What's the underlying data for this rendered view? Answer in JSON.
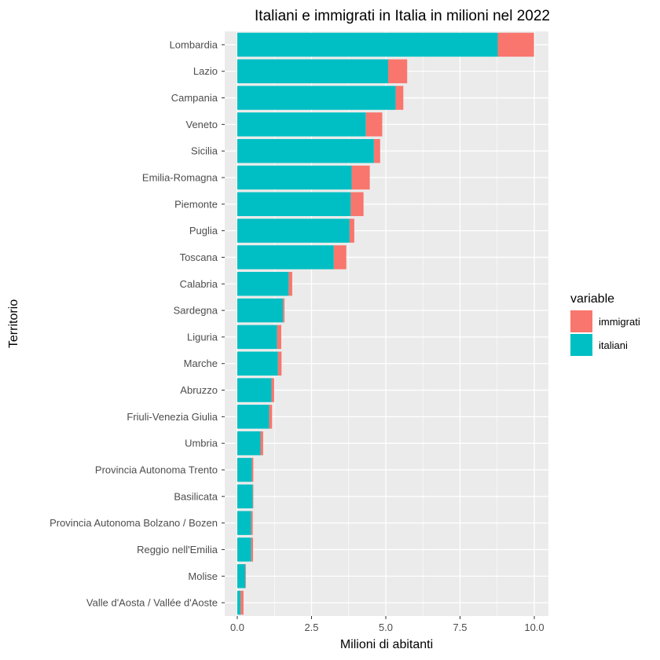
{
  "chart_data": {
    "type": "bar",
    "orientation": "horizontal",
    "stacked": true,
    "title": "Italiani e immigrati in  Italia in milioni nel 2022",
    "xlabel": "Milioni di abitanti",
    "ylabel": "Territorio",
    "xlim": [
      0,
      10.5
    ],
    "x_ticks": [
      "0.0",
      "2.5",
      "5.0",
      "7.5",
      "10.0"
    ],
    "x_tick_values": [
      0,
      2.5,
      5,
      7.5,
      10
    ],
    "grid": true,
    "panel_background": "#ebebeb",
    "legend": {
      "title": "variable",
      "position": "right"
    },
    "categories": [
      "Lombardia",
      "Lazio",
      "Campania",
      "Veneto",
      "Sicilia",
      "Emilia-Romagna",
      "Piemonte",
      "Puglia",
      "Toscana",
      "Calabria",
      "Sardegna",
      "Liguria",
      "Marche",
      "Abruzzo",
      "Friuli-Venezia Giulia",
      "Umbria",
      "Provincia Autonoma Trento",
      "Basilicata",
      "Provincia Autonoma Bolzano / Bozen",
      "Reggio nell'Emilia",
      "Molise",
      "Valle d'Aosta / Vallée d'Aoste"
    ],
    "series": [
      {
        "name": "italiani",
        "color": "#00bfc4",
        "values": [
          8.77,
          5.08,
          5.33,
          4.33,
          4.6,
          3.85,
          3.82,
          3.78,
          3.25,
          1.73,
          1.54,
          1.34,
          1.37,
          1.15,
          1.07,
          0.78,
          0.49,
          0.52,
          0.47,
          0.47,
          0.27,
          0.11
        ]
      },
      {
        "name": "immigrati",
        "color": "#f8766d",
        "values": [
          1.22,
          0.64,
          0.26,
          0.55,
          0.21,
          0.61,
          0.43,
          0.16,
          0.42,
          0.12,
          0.05,
          0.14,
          0.12,
          0.09,
          0.1,
          0.09,
          0.05,
          0.02,
          0.05,
          0.06,
          0.02,
          0.1
        ]
      }
    ]
  }
}
